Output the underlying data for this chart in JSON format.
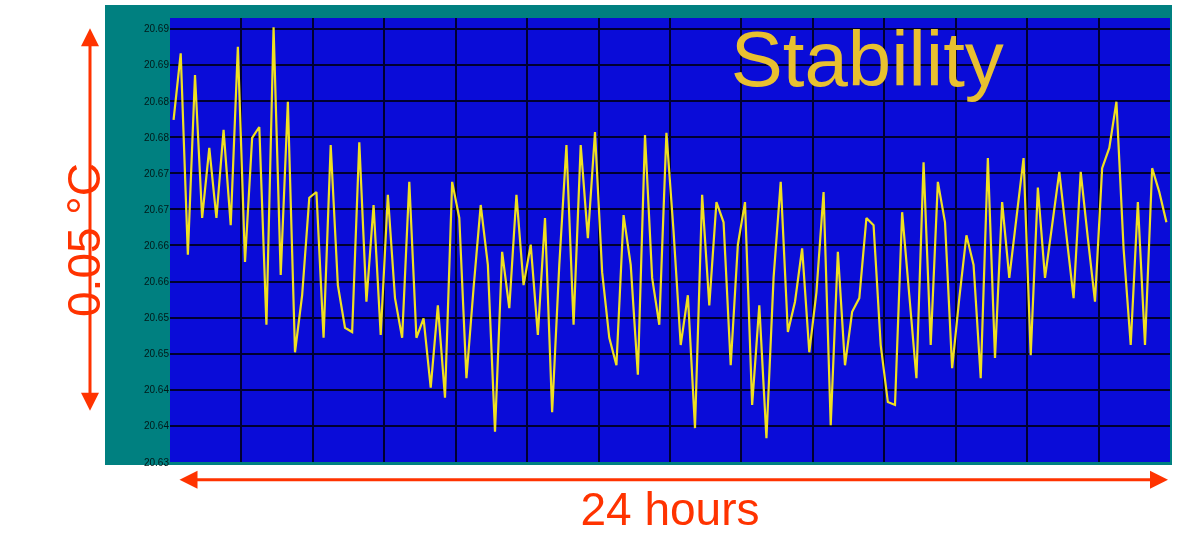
{
  "chart_data": {
    "type": "line",
    "title": "Stability",
    "xlabel": "24 hours",
    "ylabel": "0.05 °C",
    "categories": [
      null,
      null,
      null,
      null,
      null,
      null,
      null,
      null,
      null,
      null,
      null,
      null,
      null,
      null,
      null,
      null,
      null,
      null,
      null,
      null,
      null,
      null,
      null,
      null,
      null,
      null,
      null,
      null,
      null,
      null,
      null,
      null,
      null,
      null,
      null,
      null,
      null,
      null,
      null,
      null,
      null,
      null,
      null,
      null,
      null,
      null,
      null,
      null,
      null,
      null,
      null,
      null,
      null,
      null,
      null,
      null,
      null,
      null,
      null,
      null,
      null,
      null,
      null,
      null,
      null,
      null,
      null,
      null,
      null,
      null,
      null,
      null,
      null,
      null,
      null,
      null,
      null,
      null,
      null,
      null,
      null,
      null,
      null,
      null,
      null,
      null,
      null,
      null,
      null,
      null,
      null,
      null,
      null,
      null,
      null,
      null,
      null,
      null,
      null,
      null,
      null,
      null,
      null,
      null,
      null,
      null,
      null,
      null,
      null,
      null,
      null,
      null,
      null,
      null,
      null,
      null,
      null,
      null,
      null,
      null,
      null,
      null,
      null,
      null,
      null,
      null,
      null,
      null,
      null,
      null,
      null,
      null,
      null,
      null,
      null,
      null,
      null,
      null,
      null,
      null
    ],
    "series": [
      {
        "color": "#f0e020",
        "values": [
          20.6804,
          20.6896,
          20.6617,
          20.6866,
          20.6668,
          20.6765,
          20.6668,
          20.679,
          20.6658,
          20.6905,
          20.6607,
          20.6779,
          20.6794,
          20.652,
          20.6932,
          20.6589,
          20.6829,
          20.6482,
          20.6561,
          20.6696,
          20.6704,
          20.6502,
          20.6769,
          20.6575,
          20.6516,
          20.651,
          20.6773,
          20.6552,
          20.6686,
          20.6506,
          20.67,
          20.6557,
          20.6502,
          20.6718,
          20.6502,
          20.6529,
          20.6433,
          20.6547,
          20.6419,
          20.6718,
          20.6668,
          20.6446,
          20.6571,
          20.6686,
          20.6603,
          20.6372,
          20.6621,
          20.6543,
          20.67,
          20.6575,
          20.6631,
          20.6506,
          20.6668,
          20.6399,
          20.6603,
          20.6769,
          20.652,
          20.6769,
          20.664,
          20.6787,
          20.6593,
          20.6502,
          20.6464,
          20.6672,
          20.6603,
          20.6451,
          20.6783,
          20.6585,
          20.652,
          20.6786,
          20.6649,
          20.6492,
          20.6561,
          20.6377,
          20.67,
          20.6547,
          20.669,
          20.6662,
          20.6464,
          20.6631,
          20.669,
          20.6409,
          20.6547,
          20.6363,
          20.6585,
          20.6718,
          20.651,
          20.6552,
          20.6626,
          20.6482,
          20.6565,
          20.6704,
          20.6381,
          20.6621,
          20.6464,
          20.6538,
          20.6557,
          20.6668,
          20.6658,
          20.6492,
          20.6413,
          20.6409,
          20.6676,
          20.6561,
          20.6446,
          20.6745,
          20.6492,
          20.6718,
          20.6662,
          20.646,
          20.6557,
          20.6644,
          20.6603,
          20.6446,
          20.6751,
          20.6474,
          20.669,
          20.6585,
          20.6668,
          20.6751,
          20.6478,
          20.671,
          20.6585,
          20.6658,
          20.6732,
          20.6644,
          20.6557,
          20.6732,
          20.664,
          20.6552,
          20.6737,
          20.6765,
          20.6829,
          20.6626,
          20.6492,
          20.669,
          20.6492,
          20.6737,
          20.6704,
          20.6662
        ]
      }
    ],
    "ylim": [
      20.633,
      20.6945
    ],
    "yticks": [
      {
        "value": 20.633,
        "label": "20.63"
      },
      {
        "value": 20.638,
        "label": "20.64"
      },
      {
        "value": 20.643,
        "label": "20.64"
      },
      {
        "value": 20.648,
        "label": "20.65"
      },
      {
        "value": 20.653,
        "label": "20.65"
      },
      {
        "value": 20.658,
        "label": "20.66"
      },
      {
        "value": 20.663,
        "label": "20.66"
      },
      {
        "value": 20.668,
        "label": "20.67"
      },
      {
        "value": 20.673,
        "label": "20.67"
      },
      {
        "value": 20.678,
        "label": "20.68"
      },
      {
        "value": 20.683,
        "label": "20.68"
      },
      {
        "value": 20.688,
        "label": "20.69"
      },
      {
        "value": 20.693,
        "label": "20.69"
      }
    ],
    "grid": true,
    "tick_labels": "y",
    "legend": false
  }
}
